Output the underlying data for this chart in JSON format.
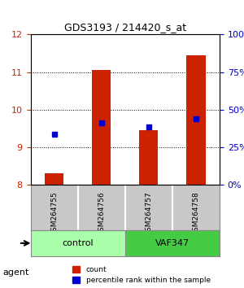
{
  "title": "GDS3193 / 214420_s_at",
  "samples": [
    "GSM264755",
    "GSM264756",
    "GSM264757",
    "GSM264758"
  ],
  "groups": [
    "control",
    "control",
    "VAF347",
    "VAF347"
  ],
  "group_colors": [
    "#90EE90",
    "#90EE90",
    "#50C850",
    "#50C850"
  ],
  "red_values": [
    8.3,
    11.05,
    9.45,
    11.45
  ],
  "blue_values": [
    9.35,
    9.65,
    9.55,
    9.75
  ],
  "blue_percentiles": [
    30,
    47,
    43,
    48
  ],
  "ylim_left": [
    8,
    12
  ],
  "ylim_right": [
    0,
    100
  ],
  "yticks_left": [
    8,
    9,
    10,
    11,
    12
  ],
  "yticks_right": [
    0,
    25,
    50,
    75,
    100
  ],
  "bar_width": 0.4,
  "red_color": "#CC2200",
  "blue_color": "#0000CC",
  "grid_color": "#000000",
  "bg_color": "#FFFFFF",
  "plot_bg": "#FFFFFF",
  "left_tick_color": "#CC2200",
  "right_tick_color": "#0000CC",
  "legend_red_label": "count",
  "legend_blue_label": "percentile rank within the sample",
  "agent_label": "agent",
  "group_label_control": "control",
  "group_label_vaf": "VAF347",
  "control_color": "#AAFFAA",
  "vaf_color": "#44CC44"
}
